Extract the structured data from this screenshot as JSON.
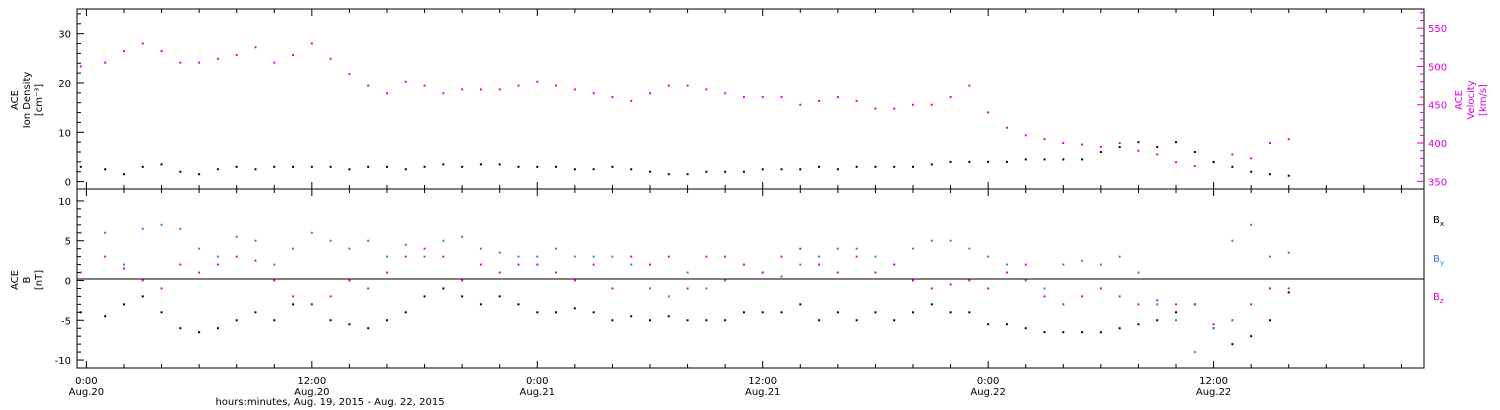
{
  "xaxis": {
    "title": "hours:minutes, Aug. 19, 2015 - Aug. 22, 2015",
    "ticks": [
      {
        "t": 0,
        "l1": "0:00",
        "l2": "Aug.20"
      },
      {
        "t": 12,
        "l1": "12:00",
        "l2": "Aug.20"
      },
      {
        "t": 24,
        "l1": "0:00",
        "l2": "Aug.21"
      },
      {
        "t": 36,
        "l1": "12:00",
        "l2": "Aug.21"
      },
      {
        "t": 48,
        "l1": "0:00",
        "l2": "Aug.22"
      },
      {
        "t": 60,
        "l1": "12:00",
        "l2": "Aug.22"
      }
    ],
    "range_hours": [
      -0.5,
      71.2
    ]
  },
  "colors": {
    "black": "#000000",
    "magenta": "#e000e0",
    "blue": "#1e88e5"
  },
  "chart_data": [
    {
      "type": "scatter",
      "panel": "top",
      "ylabel_left": [
        "ACE",
        "Ion Density",
        "[cm⁻³]"
      ],
      "ylabel_right": [
        "ACE",
        "Velocity",
        "[km/s]"
      ],
      "ylim_left": [
        -1.5,
        35
      ],
      "yticks_left": [
        "0",
        "10",
        "20",
        "30"
      ],
      "ylim_right": [
        340,
        575
      ],
      "yticks_right": [
        "350",
        "400",
        "450",
        "500",
        "550"
      ],
      "x_units": "hours since Aug.20 0:00",
      "series": [
        {
          "color": "magenta",
          "axis": "right",
          "x": [
            -0.3,
            1,
            2,
            3,
            4,
            5,
            6,
            7,
            8,
            9,
            10,
            11,
            12,
            13,
            14,
            15,
            16,
            17,
            18,
            19,
            20,
            21,
            22,
            23,
            24,
            25,
            26,
            27,
            28,
            29,
            30,
            31,
            32,
            33,
            34,
            35,
            36,
            37,
            38,
            39,
            40,
            41,
            42,
            43,
            44,
            45,
            46,
            47,
            48,
            49,
            50,
            51,
            52,
            53,
            54,
            55,
            56,
            57,
            58,
            59,
            60,
            61,
            62,
            63,
            64
          ],
          "y": [
            500,
            505,
            520,
            530,
            520,
            505,
            505,
            510,
            515,
            525,
            505,
            515,
            530,
            510,
            490,
            475,
            465,
            480,
            475,
            465,
            470,
            470,
            470,
            475,
            480,
            475,
            470,
            465,
            460,
            455,
            465,
            475,
            475,
            470,
            465,
            460,
            460,
            460,
            450,
            455,
            460,
            455,
            445,
            445,
            450,
            450,
            460,
            475,
            440,
            420,
            410,
            405,
            400,
            398,
            395,
            400,
            390,
            385,
            375,
            370,
            375,
            385,
            380,
            400,
            405
          ]
        },
        {
          "color": "black",
          "axis": "left",
          "x": [
            -0.3,
            1,
            2,
            3,
            4,
            5,
            6,
            7,
            8,
            9,
            10,
            11,
            12,
            13,
            14,
            15,
            16,
            17,
            18,
            19,
            20,
            21,
            22,
            23,
            24,
            25,
            26,
            27,
            28,
            29,
            30,
            31,
            32,
            33,
            34,
            35,
            36,
            37,
            38,
            39,
            40,
            41,
            42,
            43,
            44,
            45,
            46,
            47,
            48,
            49,
            50,
            51,
            52,
            53,
            54,
            55,
            56,
            57,
            58,
            59,
            60,
            61,
            62,
            63,
            64
          ],
          "y": [
            3,
            2.5,
            1.5,
            3,
            3.5,
            2,
            1.5,
            2.5,
            3,
            2.5,
            3,
            3,
            3,
            3,
            2.5,
            3,
            3,
            2.5,
            3,
            3.5,
            3,
            3.5,
            3.5,
            3,
            3,
            3,
            2.5,
            2.5,
            3,
            2.5,
            2,
            1.5,
            1.5,
            2,
            2,
            2,
            2.5,
            2.5,
            2.5,
            3,
            2.5,
            3,
            3,
            3,
            3,
            3.5,
            4,
            4,
            4,
            4,
            4.5,
            4.5,
            4.5,
            4.5,
            6,
            7,
            8,
            7,
            8,
            6,
            4,
            3,
            2,
            1.5,
            1.2
          ]
        }
      ]
    },
    {
      "type": "scatter",
      "panel": "bottom",
      "ylabel_left": [
        "ACE",
        "B",
        "[nT]"
      ],
      "ylim": [
        -11,
        11.5
      ],
      "yticks": [
        "-10",
        "-5",
        "0",
        "5",
        "10"
      ],
      "zero_line": true,
      "x_units": "hours since Aug.20 0:00",
      "legend": [
        {
          "label": "B",
          "sub": "x",
          "color": "black"
        },
        {
          "label": "B",
          "sub": "y",
          "color": "blue"
        },
        {
          "label": "B",
          "sub": "z",
          "color": "magenta"
        }
      ],
      "series": [
        {
          "name": "Bx",
          "color": "black",
          "x": [
            -0.3,
            1,
            2,
            3,
            4,
            5,
            6,
            7,
            8,
            9,
            10,
            11,
            12,
            13,
            14,
            15,
            16,
            17,
            18,
            19,
            20,
            21,
            22,
            23,
            24,
            25,
            26,
            27,
            28,
            29,
            30,
            31,
            32,
            33,
            34,
            35,
            36,
            37,
            38,
            39,
            40,
            41,
            42,
            43,
            44,
            45,
            46,
            47,
            48,
            49,
            50,
            51,
            52,
            53,
            54,
            55,
            56,
            57,
            58,
            59,
            60,
            61,
            62,
            63,
            64
          ],
          "y": [
            -4,
            -4.5,
            -3,
            -2,
            -4,
            -6,
            -6.5,
            -6,
            -5,
            -4,
            -5,
            -3,
            -3,
            -5,
            -5.5,
            -6,
            -5,
            -4,
            -2,
            -1,
            -2,
            -3,
            -2,
            -3,
            -4,
            -4,
            -3.5,
            -4,
            -5,
            -4.5,
            -5,
            -4.5,
            -5,
            -5,
            -5,
            -4,
            -4,
            -4,
            -3,
            -5,
            -4,
            -5,
            -4,
            -5,
            -4,
            -3,
            -4,
            -4,
            -5.5,
            -5.5,
            -6,
            -6.5,
            -6.5,
            -6.5,
            -6.5,
            -6,
            -5.5,
            -5,
            -4,
            -3,
            -6,
            -8,
            -7,
            -5,
            -1.5
          ]
        },
        {
          "name": "By",
          "color": "blue",
          "x": [
            -0.3,
            1,
            2,
            3,
            4,
            5,
            6,
            7,
            8,
            9,
            10,
            11,
            12,
            13,
            14,
            15,
            16,
            17,
            18,
            19,
            20,
            21,
            22,
            23,
            24,
            25,
            26,
            27,
            28,
            29,
            30,
            31,
            32,
            33,
            34,
            35,
            36,
            37,
            38,
            39,
            40,
            41,
            42,
            43,
            44,
            45,
            46,
            47,
            48,
            49,
            50,
            51,
            52,
            53,
            54,
            55,
            56,
            57,
            58,
            59,
            60,
            61,
            62,
            63,
            64
          ],
          "y": [
            6,
            6,
            2,
            6.5,
            7,
            6.5,
            4,
            3,
            5.5,
            5,
            2,
            4,
            6,
            5,
            4,
            5,
            3,
            4.5,
            3,
            5,
            5.5,
            4,
            3.5,
            3,
            3,
            4,
            3,
            3,
            3,
            2,
            -1,
            -2,
            1,
            -1,
            0,
            2,
            1,
            0.5,
            2,
            3,
            4,
            4,
            3,
            2,
            4,
            5,
            5,
            4,
            3,
            2,
            0,
            -1,
            2,
            2.5,
            2,
            3,
            1,
            -3,
            -5,
            -9,
            -6,
            5,
            7,
            3,
            3.5
          ]
        },
        {
          "name": "Bz",
          "color": "magenta",
          "x": [
            -0.3,
            1,
            2,
            3,
            4,
            5,
            6,
            7,
            8,
            9,
            10,
            11,
            12,
            13,
            14,
            15,
            16,
            17,
            18,
            19,
            20,
            21,
            22,
            23,
            24,
            25,
            26,
            27,
            28,
            29,
            30,
            31,
            32,
            33,
            34,
            35,
            36,
            37,
            38,
            39,
            40,
            41,
            42,
            43,
            44,
            45,
            46,
            47,
            48,
            49,
            50,
            51,
            52,
            53,
            54,
            55,
            56,
            57,
            58,
            59,
            60,
            61,
            62,
            63,
            64
          ],
          "y": [
            1,
            3,
            1.5,
            0,
            -1,
            2,
            1,
            2,
            3,
            2.5,
            0,
            -2,
            -3,
            -2,
            0,
            -1,
            1,
            3,
            4,
            3,
            0,
            2,
            1,
            2,
            2,
            1,
            0,
            2,
            -1,
            3,
            2,
            3,
            -1,
            3,
            3,
            2,
            1,
            3,
            4,
            2,
            1,
            3,
            1,
            2,
            0,
            -1,
            -0.5,
            0,
            -1,
            1,
            2,
            -2,
            -3,
            -2,
            -1,
            -2,
            -3,
            -2.5,
            -3,
            -3,
            -5.5,
            -5,
            -3,
            -1,
            -1
          ]
        }
      ]
    }
  ]
}
